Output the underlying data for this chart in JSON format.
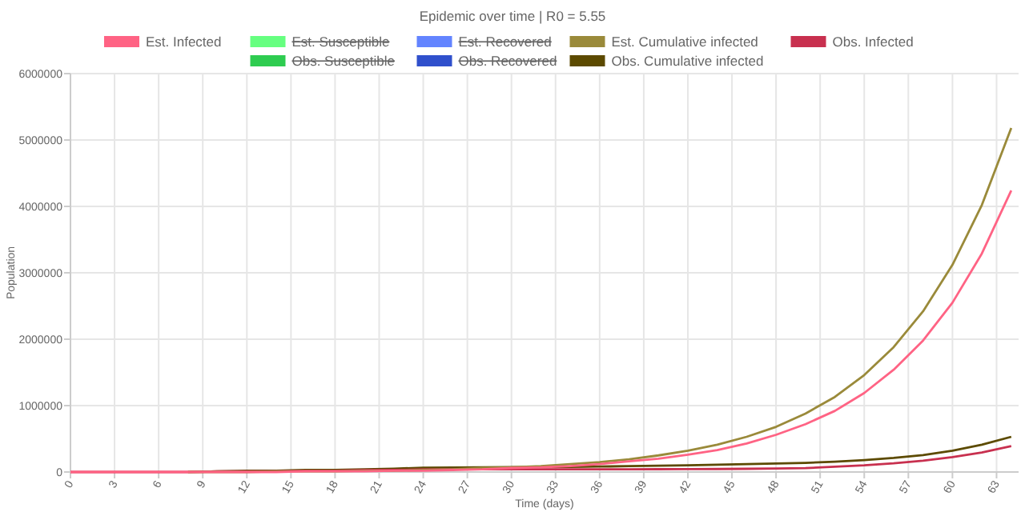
{
  "chart_data": {
    "type": "line",
    "title": "Epidemic over time | R0 = 5.55",
    "xlabel": "Time (days)",
    "ylabel": "Population",
    "x": [
      0,
      2,
      4,
      6,
      8,
      10,
      12,
      14,
      16,
      18,
      20,
      22,
      24,
      26,
      28,
      30,
      32,
      34,
      36,
      38,
      40,
      42,
      44,
      46,
      48,
      50,
      52,
      54,
      56,
      58,
      60,
      62,
      64
    ],
    "xlim": [
      0,
      64.5
    ],
    "xticks": [
      0,
      3,
      6,
      9,
      12,
      15,
      18,
      21,
      24,
      27,
      30,
      33,
      36,
      39,
      42,
      45,
      48,
      51,
      54,
      57,
      60,
      63
    ],
    "ylim": [
      0,
      6000000
    ],
    "yticks": [
      0,
      1000000,
      2000000,
      3000000,
      4000000,
      5000000,
      6000000
    ],
    "grid": true,
    "legend": "top",
    "series": [
      {
        "name": "Est. Infected",
        "color": "#ff6384",
        "values": [
          0,
          0,
          0,
          0,
          0,
          0,
          0,
          0,
          10000,
          10000,
          10000,
          20000,
          20000,
          30000,
          40000,
          60000,
          70000,
          90000,
          120000,
          160000,
          200000,
          260000,
          330000,
          430000,
          560000,
          720000,
          920000,
          1190000,
          1540000,
          1980000,
          2550000,
          3290000,
          4240000
        ]
      },
      {
        "name": "Est. Susceptible",
        "color": "#66ff80",
        "values": [
          null,
          null,
          null,
          null,
          null,
          null,
          null,
          null,
          null,
          null,
          null,
          null,
          null,
          null,
          null,
          null,
          null,
          null,
          null,
          null,
          null,
          null,
          null,
          null,
          null,
          null,
          null,
          null,
          null,
          null,
          null,
          null,
          null
        ]
      },
      {
        "name": "Est. Recovered",
        "color": "#6384ff",
        "values": [
          null,
          null,
          null,
          null,
          null,
          null,
          null,
          null,
          null,
          null,
          null,
          null,
          null,
          null,
          null,
          null,
          null,
          null,
          null,
          null,
          null,
          null,
          null,
          null,
          null,
          null,
          null,
          null,
          null,
          null,
          null,
          null,
          null
        ]
      },
      {
        "name": "Est. Cumulative infected",
        "color": "#9a8a3a",
        "values": [
          null,
          null,
          null,
          null,
          0,
          0,
          0,
          10000,
          10000,
          10000,
          20000,
          20000,
          30000,
          40000,
          60000,
          70000,
          90000,
          120000,
          150000,
          190000,
          250000,
          320000,
          410000,
          530000,
          680000,
          880000,
          1130000,
          1460000,
          1880000,
          2420000,
          3120000,
          4020000,
          5180000
        ]
      },
      {
        "name": "Obs. Infected",
        "color": "#c8304f",
        "values": [
          0,
          0,
          0,
          0,
          0,
          10000,
          10000,
          10000,
          20000,
          20000,
          30000,
          30000,
          40000,
          41000,
          42000,
          42000,
          41000,
          40000,
          40000,
          41000,
          42000,
          43000,
          45000,
          48000,
          52000,
          58000,
          80000,
          100000,
          130000,
          170000,
          225000,
          295000,
          390000
        ]
      },
      {
        "name": "Obs. Susceptible",
        "color": "#2ecc50",
        "values": [
          null,
          null,
          null,
          null,
          null,
          null,
          null,
          null,
          null,
          null,
          null,
          null,
          null,
          null,
          null,
          null,
          null,
          null,
          null,
          null,
          null,
          null,
          null,
          null,
          null,
          null,
          null,
          null,
          null,
          null,
          null,
          null,
          null
        ]
      },
      {
        "name": "Obs. Recovered",
        "color": "#3050cc",
        "values": [
          null,
          null,
          null,
          null,
          null,
          null,
          null,
          null,
          null,
          null,
          null,
          null,
          null,
          null,
          null,
          null,
          null,
          null,
          null,
          null,
          null,
          null,
          null,
          null,
          null,
          null,
          null,
          null,
          null,
          null,
          null,
          null,
          null
        ]
      },
      {
        "name": "Obs. Cumulative infected",
        "color": "#5c4a00",
        "values": [
          null,
          null,
          null,
          null,
          0,
          10000,
          20000,
          20000,
          30000,
          30000,
          40000,
          50000,
          65000,
          68000,
          70000,
          72000,
          75000,
          78000,
          82000,
          88000,
          95000,
          102000,
          110000,
          118000,
          127000,
          138000,
          155000,
          180000,
          212000,
          255000,
          320000,
          410000,
          530000
        ]
      }
    ]
  }
}
